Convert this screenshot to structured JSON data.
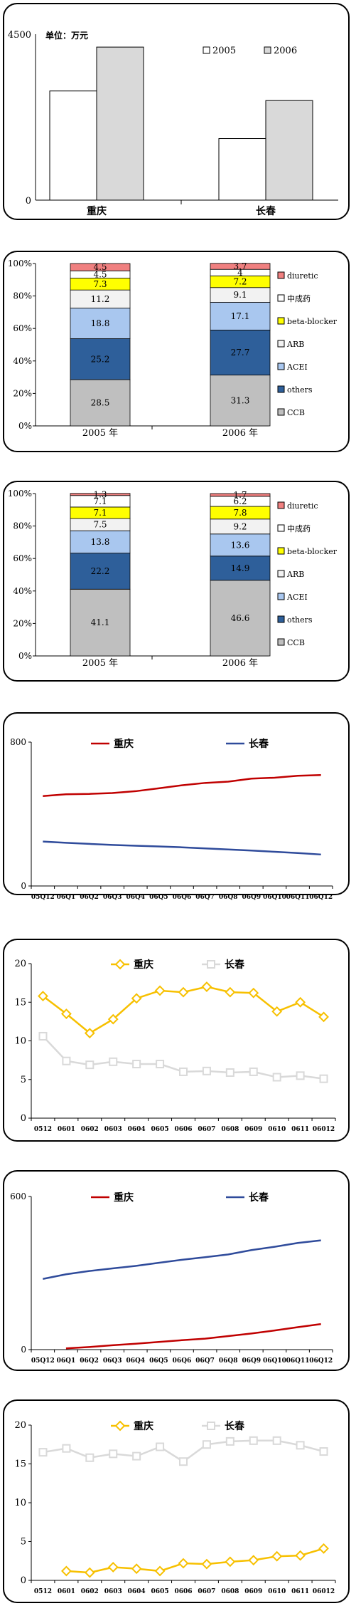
{
  "chart_data": [
    {
      "type": "bar",
      "unit_label": "单位：万元",
      "categories": [
        "重庆",
        "长春"
      ],
      "series": [
        {
          "name": "2005",
          "values": [
            2960,
            1670
          ],
          "color": "#ffffff"
        },
        {
          "name": "2006",
          "values": [
            4150,
            2700
          ],
          "color": "#d9d9d9"
        }
      ],
      "ylim": [
        0,
        4500
      ],
      "yticks": [
        "0",
        "4500"
      ],
      "legend": "top-right"
    },
    {
      "type": "bar",
      "stacked": true,
      "categories": [
        "2005 年",
        "2006 年"
      ],
      "series": [
        {
          "name": "CCB",
          "values": [
            28.5,
            31.3
          ],
          "color": "#bfbfbf",
          "label_color": "#000000"
        },
        {
          "name": "others",
          "values": [
            25.2,
            27.7
          ],
          "color": "#2e5f9a",
          "label_color": "#000000"
        },
        {
          "name": "ACEI",
          "values": [
            18.8,
            17.1
          ],
          "color": "#a9c7ef",
          "label_color": "#000000"
        },
        {
          "name": "ARB",
          "values": [
            11.2,
            9.1
          ],
          "color": "#f2f2f2",
          "label_color": "#000000"
        },
        {
          "name": "beta-blocker",
          "values": [
            7.3,
            7.2
          ],
          "color": "#ffff00",
          "label_color": "#000000"
        },
        {
          "name": "中成药",
          "values": [
            4.5,
            4.0
          ],
          "color": "#ffffff",
          "label_color": "#000000"
        },
        {
          "name": "diuretic",
          "values": [
            4.5,
            3.7
          ],
          "color": "#f08080",
          "label_color": "#000000"
        }
      ],
      "legend_labels": [
        "diuretic",
        "中成药",
        "beta-blocker",
        "ARB",
        "ACEI",
        "others",
        "CCB"
      ],
      "ylim": [
        0,
        100
      ],
      "yticks": [
        "0%",
        "20%",
        "40%",
        "60%",
        "80%",
        "100%"
      ],
      "legend": "right"
    },
    {
      "type": "bar",
      "stacked": true,
      "categories": [
        "2005 年",
        "2006 年"
      ],
      "series": [
        {
          "name": "CCB",
          "values": [
            41.1,
            46.6
          ],
          "color": "#bfbfbf"
        },
        {
          "name": "others",
          "values": [
            22.2,
            14.9
          ],
          "color": "#2e5f9a"
        },
        {
          "name": "ACEI",
          "values": [
            13.8,
            13.6
          ],
          "color": "#a9c7ef"
        },
        {
          "name": "ARB",
          "values": [
            7.5,
            9.2
          ],
          "color": "#f2f2f2"
        },
        {
          "name": "beta-blocker",
          "values": [
            7.1,
            7.8
          ],
          "color": "#ffff00"
        },
        {
          "name": "中成药",
          "values": [
            7.1,
            6.2
          ],
          "color": "#ffffff"
        },
        {
          "name": "diuretic",
          "values": [
            1.3,
            1.7
          ],
          "color": "#f08080"
        }
      ],
      "legend_labels": [
        "diuretic",
        "中成药",
        "beta-blocker",
        "ARB",
        "ACEI",
        "others",
        "CCB"
      ],
      "ylim": [
        0,
        100
      ],
      "yticks": [
        "0%",
        "20%",
        "40%",
        "60%",
        "80%",
        "100%"
      ],
      "legend": "right"
    },
    {
      "type": "line",
      "categories": [
        "05Q12",
        "06Q1",
        "06Q2",
        "06Q3",
        "06Q4",
        "06Q5",
        "06Q6",
        "06Q7",
        "06Q8",
        "06Q9",
        "06Q10",
        "06Q11",
        "06Q12"
      ],
      "series": [
        {
          "name": "重庆",
          "values": [
            500,
            510,
            512,
            517,
            527,
            543,
            560,
            573,
            580,
            597,
            602,
            613,
            617
          ],
          "color": "#c00000"
        },
        {
          "name": "长春",
          "values": [
            247,
            240,
            234,
            228,
            224,
            220,
            215,
            209,
            203,
            197,
            190,
            183,
            175
          ],
          "color": "#2f4b9b"
        }
      ],
      "ylim": [
        0,
        800
      ],
      "yticks": [
        "0",
        "800"
      ],
      "legend": "top"
    },
    {
      "type": "line",
      "categories": [
        "0512",
        "0601",
        "0602",
        "0603",
        "0604",
        "0605",
        "0606",
        "0607",
        "0608",
        "0609",
        "0610",
        "0611",
        "06012"
      ],
      "series": [
        {
          "name": "重庆",
          "values": [
            15.8,
            13.5,
            11.0,
            12.8,
            15.5,
            16.5,
            16.3,
            17.0,
            16.3,
            16.2,
            13.8,
            15.0,
            13.1
          ],
          "color": "#f7c000",
          "marker": "diamond"
        },
        {
          "name": "长春",
          "values": [
            10.6,
            7.4,
            6.9,
            7.3,
            7.0,
            7.0,
            6.0,
            6.1,
            5.9,
            6.0,
            5.3,
            5.5,
            5.1
          ],
          "color": "#d9d9d9",
          "marker": "square"
        }
      ],
      "ylim": [
        0,
        20
      ],
      "yticks": [
        "0",
        "5",
        "10",
        "15",
        "20"
      ],
      "legend": "top"
    },
    {
      "type": "line",
      "categories": [
        "05Q12",
        "06Q1",
        "06Q2",
        "06Q3",
        "06Q4",
        "06Q5",
        "06Q6",
        "06Q7",
        "06Q8",
        "06Q9",
        "06Q10",
        "06Q11",
        "06Q12"
      ],
      "series": [
        {
          "name": "重庆",
          "values": [
            null,
            5,
            10,
            17,
            23,
            30,
            37,
            43,
            53,
            63,
            75,
            88,
            100
          ],
          "color": "#c00000"
        },
        {
          "name": "长春",
          "values": [
            277,
            295,
            308,
            318,
            328,
            340,
            352,
            362,
            373,
            390,
            403,
            418,
            428
          ],
          "color": "#2f4b9b"
        }
      ],
      "ylim": [
        0,
        600
      ],
      "yticks": [
        "0",
        "600"
      ],
      "legend": "top"
    },
    {
      "type": "line",
      "categories": [
        "0512",
        "0601",
        "0602",
        "0603",
        "0604",
        "0605",
        "0606",
        "0607",
        "0608",
        "0609",
        "0610",
        "0611",
        "06012"
      ],
      "series": [
        {
          "name": "重庆",
          "values": [
            null,
            1.2,
            1.0,
            1.7,
            1.5,
            1.2,
            2.2,
            2.1,
            2.4,
            2.6,
            3.1,
            3.2,
            4.1
          ],
          "color": "#f7c000",
          "marker": "diamond"
        },
        {
          "name": "长春",
          "values": [
            16.5,
            17.0,
            15.8,
            16.3,
            16.0,
            17.2,
            15.3,
            17.5,
            17.9,
            18.0,
            18.0,
            17.4,
            16.6
          ],
          "color": "#d9d9d9",
          "marker": "square"
        }
      ],
      "ylim": [
        0,
        20
      ],
      "yticks": [
        "0",
        "5",
        "10",
        "15",
        "20"
      ],
      "legend": "top"
    }
  ]
}
